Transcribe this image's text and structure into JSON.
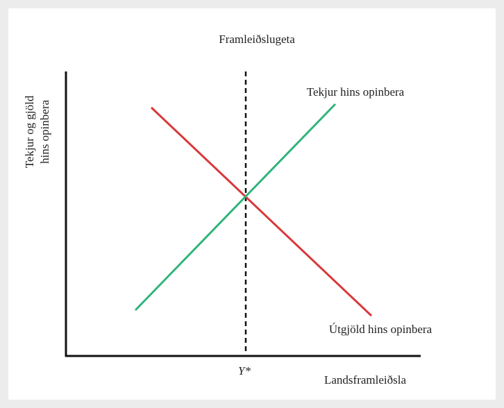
{
  "title": "Framleiðslugeta",
  "y_axis": {
    "label_lines": [
      "Tekjur og gjöld",
      "hins opinbera"
    ]
  },
  "x_axis": {
    "label": "Landsframleiðsla",
    "marker": "Y*"
  },
  "curves": [
    {
      "label": "Tekjur hins opinbera"
    },
    {
      "label": "Útgjöld hins opinbera"
    }
  ]
}
